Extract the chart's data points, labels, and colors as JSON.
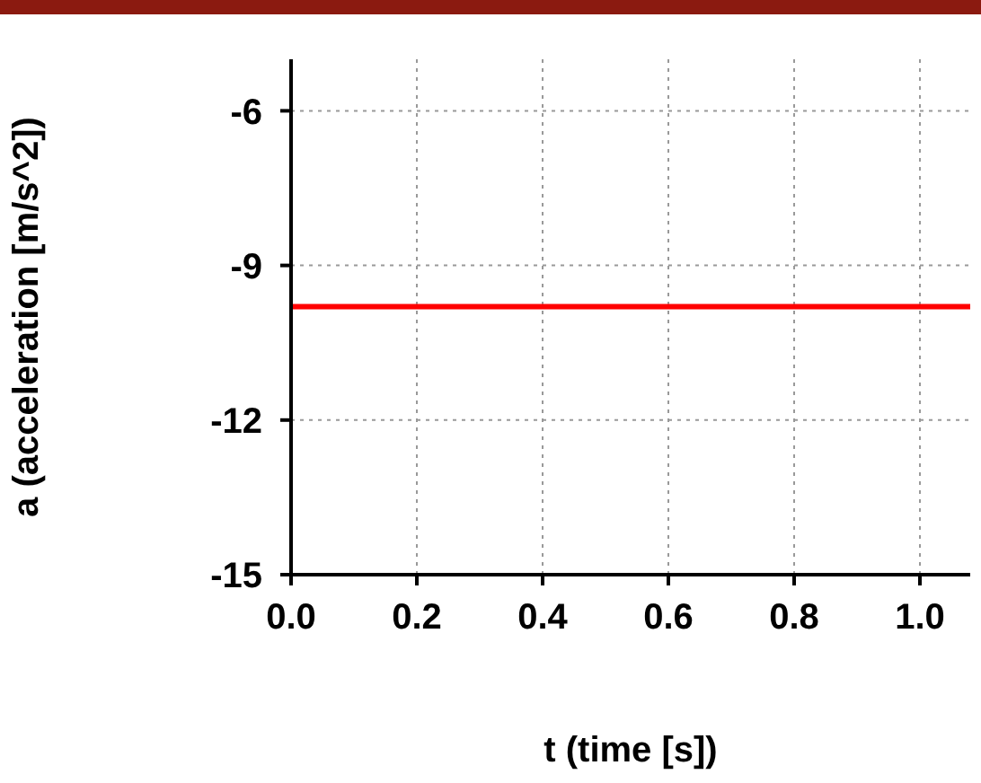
{
  "chart_data": {
    "type": "line",
    "xlabel": "t (time [s])",
    "ylabel": "a (acceleration [m/s^2])",
    "x": [
      0,
      1.08
    ],
    "series": [
      {
        "color": "#ff0000",
        "values": [
          -9.8,
          -9.8
        ]
      }
    ],
    "xlim": [
      0,
      1.08
    ],
    "xticks": [
      {
        "value": 0,
        "label": "0.0"
      },
      {
        "value": 0.2,
        "label": "0.2"
      },
      {
        "value": 0.4,
        "label": "0.4"
      },
      {
        "value": 0.6,
        "label": "0.6"
      },
      {
        "value": 0.8,
        "label": "0.8"
      },
      {
        "value": 1,
        "label": "1.0"
      }
    ],
    "ylim": [
      -15,
      -5
    ],
    "yticks": [
      -15,
      -12,
      -9,
      -6
    ],
    "grid": true,
    "marker": "none",
    "line_style": "solid"
  }
}
